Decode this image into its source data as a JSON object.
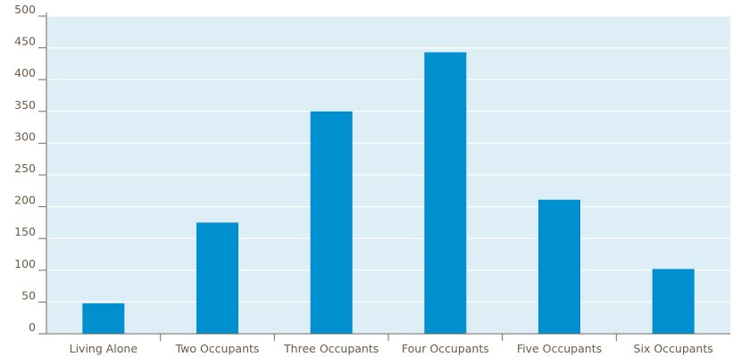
{
  "chart_data": {
    "type": "bar",
    "title": "",
    "xlabel": "",
    "ylabel": "",
    "categories": [
      "Living Alone",
      "Two Occupants",
      "Three Occupants",
      "Four Occupants",
      "Five Occupants",
      "Six Occupants"
    ],
    "values": [
      48,
      175,
      350,
      443,
      211,
      102
    ],
    "ylim": [
      0,
      500
    ],
    "yticks": [
      0,
      50,
      100,
      150,
      200,
      250,
      300,
      350,
      400,
      450,
      500
    ],
    "grid": true,
    "legend": "none",
    "colors": {
      "bar": "#0090d0",
      "plot_background": "#deeef7",
      "gridline": "#ffffff",
      "axis": "#7a6a58",
      "text": "#6b5a48"
    }
  }
}
